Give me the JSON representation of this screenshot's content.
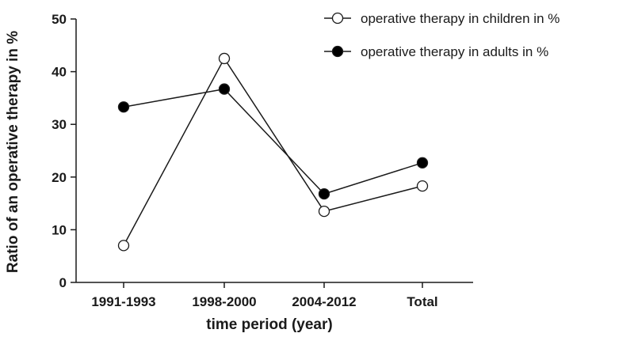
{
  "chart_data": {
    "type": "line",
    "title": "",
    "xlabel": "time period (year)",
    "ylabel": "Ratio of an operative therapy in %",
    "categories": [
      "1991-1993",
      "1998-2000",
      "2004-2012",
      "Total"
    ],
    "ylim": [
      0,
      50
    ],
    "yticks": [
      "0",
      "10",
      "20",
      "30",
      "40",
      "50"
    ],
    "grid": false,
    "legend_position": "top-right",
    "series": [
      {
        "name": "operative therapy in children in %",
        "marker": "open-circle",
        "values": [
          7.0,
          42.5,
          13.5,
          18.3
        ]
      },
      {
        "name": "operative therapy in adults in %",
        "marker": "filled-circle",
        "values": [
          33.3,
          36.7,
          16.8,
          22.7
        ]
      }
    ]
  },
  "colors": {
    "line": "#1a1a1a",
    "open_fill": "#ffffff",
    "filled": "#000000"
  }
}
